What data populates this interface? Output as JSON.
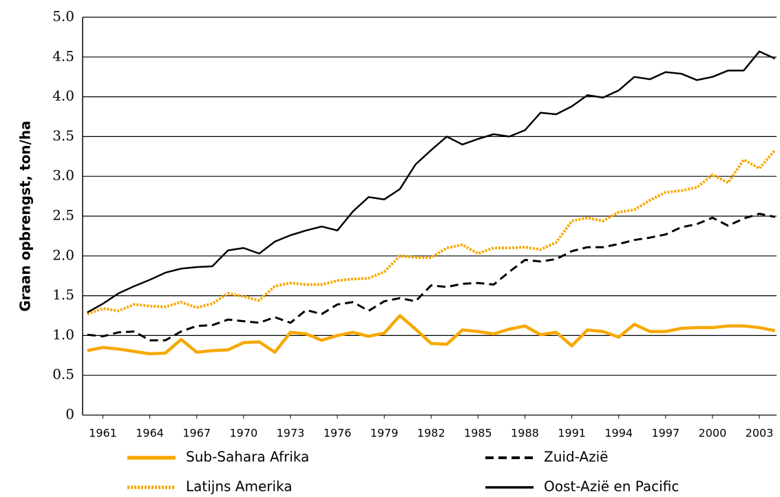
{
  "chart_data": {
    "type": "line",
    "y_label": "Graan opbrengst, ton/ha",
    "x": [
      1960,
      1961,
      1962,
      1963,
      1964,
      1965,
      1966,
      1967,
      1968,
      1969,
      1970,
      1971,
      1972,
      1973,
      1974,
      1975,
      1976,
      1977,
      1978,
      1979,
      1980,
      1981,
      1982,
      1983,
      1984,
      1985,
      1986,
      1987,
      1988,
      1989,
      1990,
      1991,
      1992,
      1993,
      1994,
      1995,
      1996,
      1997,
      1998,
      1999,
      2000,
      2001,
      2002,
      2003,
      2004
    ],
    "xlim": [
      1959.7,
      2004.1
    ],
    "xticks": [
      1961,
      1964,
      1967,
      1970,
      1973,
      1976,
      1979,
      1982,
      1985,
      1988,
      1991,
      1994,
      1997,
      2000,
      2003
    ],
    "ylim": [
      0,
      5
    ],
    "yticks": [
      0,
      {
        "value": 0.5,
        "label": "0.5"
      },
      {
        "value": 1,
        "label": "1.0"
      },
      {
        "value": 1.5,
        "label": "1.5"
      },
      {
        "value": 2,
        "label": "2.0"
      },
      {
        "value": 2.5,
        "label": "2.5"
      },
      {
        "value": 3,
        "label": "3.0"
      },
      {
        "value": 3.5,
        "label": "3.5"
      },
      {
        "value": 4,
        "label": "4.0"
      },
      {
        "value": 4.5,
        "label": "4.5"
      },
      {
        "value": 5,
        "label": "5.0"
      }
    ],
    "grid": true,
    "series": [
      {
        "name": "Sub-Sahara Afrika",
        "color": "#f7a800",
        "dash": "solid",
        "values": [
          0.81,
          0.85,
          0.83,
          0.8,
          0.77,
          0.78,
          0.95,
          0.79,
          0.81,
          0.82,
          0.91,
          0.92,
          0.79,
          1.04,
          1.02,
          0.94,
          1.0,
          1.04,
          0.99,
          1.03,
          1.25,
          1.08,
          0.9,
          0.89,
          1.07,
          1.05,
          1.02,
          1.08,
          1.12,
          1.01,
          1.04,
          0.87,
          1.07,
          1.05,
          0.98,
          1.14,
          1.05,
          1.05,
          1.09,
          1.1,
          1.1,
          1.12,
          1.12,
          1.1,
          1.06
        ]
      },
      {
        "name": "Latijns Amerika",
        "color": "#f7a800",
        "dash": "dotted",
        "values": [
          1.27,
          1.34,
          1.31,
          1.39,
          1.37,
          1.36,
          1.42,
          1.35,
          1.4,
          1.53,
          1.49,
          1.44,
          1.62,
          1.66,
          1.64,
          1.64,
          1.69,
          1.71,
          1.72,
          1.8,
          2.0,
          1.98,
          1.98,
          2.1,
          2.14,
          2.03,
          2.1,
          2.1,
          2.11,
          2.08,
          2.17,
          2.44,
          2.48,
          2.44,
          2.55,
          2.58,
          2.7,
          2.8,
          2.82,
          2.86,
          3.02,
          2.92,
          3.21,
          3.1,
          3.33
        ]
      },
      {
        "name": "Zuid-Azië",
        "color": "#000000",
        "dash": "dashed",
        "values": [
          1.01,
          0.99,
          1.04,
          1.05,
          0.94,
          0.94,
          1.05,
          1.12,
          1.13,
          1.2,
          1.18,
          1.16,
          1.23,
          1.16,
          1.32,
          1.27,
          1.39,
          1.42,
          1.31,
          1.43,
          1.47,
          1.43,
          1.63,
          1.61,
          1.65,
          1.66,
          1.64,
          1.8,
          1.95,
          1.93,
          1.96,
          2.06,
          2.11,
          2.11,
          2.15,
          2.2,
          2.23,
          2.27,
          2.36,
          2.4,
          2.48,
          2.38,
          2.47,
          2.53,
          2.49
        ]
      },
      {
        "name": "Oost-Azië en Pacific",
        "color": "#000000",
        "dash": "solid",
        "values": [
          1.29,
          1.4,
          1.53,
          1.62,
          1.7,
          1.79,
          1.84,
          1.86,
          1.87,
          2.07,
          2.1,
          2.03,
          2.18,
          2.26,
          2.32,
          2.37,
          2.32,
          2.56,
          2.74,
          2.71,
          2.84,
          3.15,
          3.33,
          3.5,
          3.4,
          3.47,
          3.53,
          3.5,
          3.58,
          3.8,
          3.78,
          3.88,
          4.02,
          3.99,
          4.08,
          4.25,
          4.22,
          4.31,
          4.29,
          4.21,
          4.25,
          4.33,
          4.33,
          4.57,
          4.48
        ]
      }
    ]
  }
}
